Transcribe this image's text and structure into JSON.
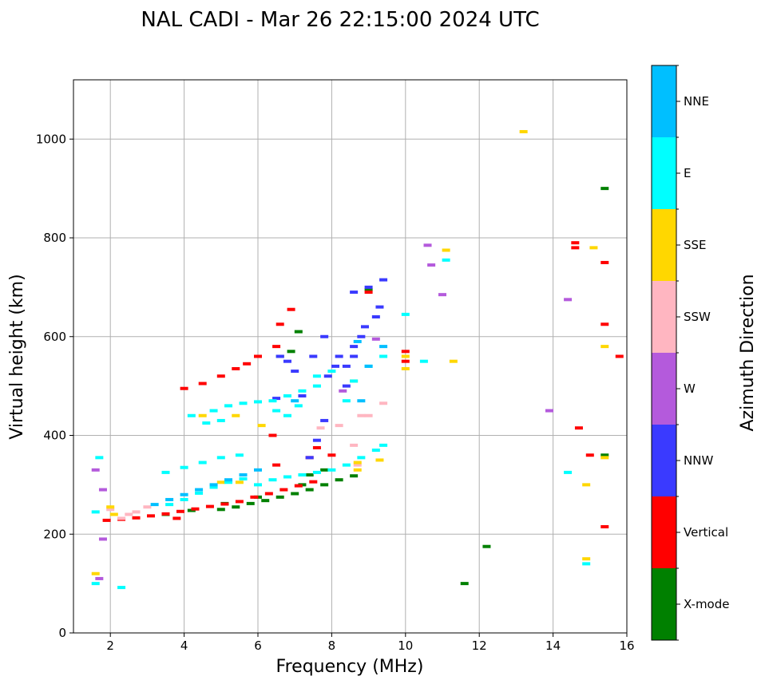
{
  "chart_data": {
    "type": "scatter",
    "title": "NAL CADI - Mar 26 22:15:00 2024 UTC",
    "xlabel": "Frequency (MHz)",
    "ylabel": "Virtual height (km)",
    "xlim": [
      1,
      16
    ],
    "ylim": [
      0,
      1120
    ],
    "xticks": [
      2,
      4,
      6,
      8,
      10,
      12,
      14,
      16
    ],
    "yticks": [
      0,
      200,
      400,
      600,
      800,
      1000
    ],
    "grid": true,
    "colorbar_label": "Azimuth Direction",
    "categories": [
      {
        "name": "X-mode",
        "color": "#008000"
      },
      {
        "name": "Vertical",
        "color": "#ff0000"
      },
      {
        "name": "NNW",
        "color": "#3a3aff"
      },
      {
        "name": "W",
        "color": "#b45adc"
      },
      {
        "name": "SSW",
        "color": "#ffb6c1"
      },
      {
        "name": "SSE",
        "color": "#ffd700"
      },
      {
        "name": "E",
        "color": "#00ffff"
      },
      {
        "name": "NNE",
        "color": "#00bfff"
      }
    ],
    "series": [
      {
        "name": "X-mode",
        "points": [
          [
            5.0,
            250
          ],
          [
            5.4,
            255
          ],
          [
            5.8,
            262
          ],
          [
            6.2,
            268
          ],
          [
            6.6,
            275
          ],
          [
            7.0,
            282
          ],
          [
            7.4,
            290
          ],
          [
            7.8,
            300
          ],
          [
            7.8,
            330
          ],
          [
            8.2,
            310
          ],
          [
            8.6,
            318
          ],
          [
            7.2,
            300
          ],
          [
            7.4,
            320
          ],
          [
            6.6,
            560
          ],
          [
            6.9,
            570
          ],
          [
            7.1,
            610
          ],
          [
            9.0,
            695
          ],
          [
            11.6,
            100
          ],
          [
            12.2,
            175
          ],
          [
            15.4,
            900
          ],
          [
            15.4,
            360
          ],
          [
            3.5,
            240
          ],
          [
            4.2,
            248
          ],
          [
            5.1,
            262
          ],
          [
            6.0,
            275
          ]
        ]
      },
      {
        "name": "Vertical",
        "points": [
          [
            1.9,
            228
          ],
          [
            2.3,
            230
          ],
          [
            2.7,
            233
          ],
          [
            3.1,
            237
          ],
          [
            3.5,
            241
          ],
          [
            3.9,
            246
          ],
          [
            4.3,
            251
          ],
          [
            4.7,
            256
          ],
          [
            5.1,
            261
          ],
          [
            5.5,
            266
          ],
          [
            5.9,
            275
          ],
          [
            6.3,
            282
          ],
          [
            6.7,
            290
          ],
          [
            7.1,
            298
          ],
          [
            7.5,
            306
          ],
          [
            4.0,
            495
          ],
          [
            4.5,
            505
          ],
          [
            5.0,
            520
          ],
          [
            5.4,
            535
          ],
          [
            5.7,
            545
          ],
          [
            6.0,
            560
          ],
          [
            6.5,
            580
          ],
          [
            6.6,
            625
          ],
          [
            6.9,
            655
          ],
          [
            6.4,
            400
          ],
          [
            6.5,
            340
          ],
          [
            7.4,
            355
          ],
          [
            7.6,
            375
          ],
          [
            8.0,
            360
          ],
          [
            9.0,
            690
          ],
          [
            10.0,
            570
          ],
          [
            10.0,
            550
          ],
          [
            14.6,
            790
          ],
          [
            14.6,
            780
          ],
          [
            15.4,
            750
          ],
          [
            15.4,
            625
          ],
          [
            14.7,
            415
          ],
          [
            15.0,
            360
          ],
          [
            15.4,
            215
          ],
          [
            15.8,
            560
          ],
          [
            3.8,
            232
          ]
        ]
      },
      {
        "name": "NNW",
        "points": [
          [
            7.4,
            355
          ],
          [
            7.6,
            390
          ],
          [
            7.8,
            430
          ],
          [
            7.9,
            520
          ],
          [
            8.1,
            540
          ],
          [
            8.2,
            560
          ],
          [
            7.5,
            560
          ],
          [
            7.8,
            600
          ],
          [
            8.4,
            500
          ],
          [
            8.4,
            540
          ],
          [
            8.6,
            560
          ],
          [
            8.8,
            600
          ],
          [
            8.9,
            620
          ],
          [
            9.2,
            640
          ],
          [
            9.3,
            660
          ],
          [
            8.6,
            690
          ],
          [
            9.0,
            700
          ],
          [
            9.4,
            715
          ],
          [
            7.0,
            530
          ],
          [
            6.8,
            550
          ],
          [
            6.6,
            560
          ],
          [
            7.2,
            480
          ],
          [
            6.5,
            475
          ],
          [
            8.6,
            580
          ]
        ]
      },
      {
        "name": "W",
        "points": [
          [
            1.6,
            330
          ],
          [
            1.8,
            290
          ],
          [
            1.8,
            190
          ],
          [
            10.6,
            785
          ],
          [
            10.7,
            745
          ],
          [
            11.0,
            685
          ],
          [
            14.4,
            675
          ],
          [
            13.9,
            450
          ],
          [
            9.2,
            595
          ],
          [
            8.3,
            490
          ],
          [
            1.7,
            110
          ]
        ]
      },
      {
        "name": "SSW",
        "points": [
          [
            2.3,
            232
          ],
          [
            2.5,
            240
          ],
          [
            2.7,
            245
          ],
          [
            3.0,
            255
          ],
          [
            7.7,
            415
          ],
          [
            8.2,
            420
          ],
          [
            8.8,
            440
          ],
          [
            9.0,
            440
          ],
          [
            9.4,
            465
          ],
          [
            8.6,
            380
          ],
          [
            8.7,
            340
          ],
          [
            2.0,
            250
          ]
        ]
      },
      {
        "name": "SSE",
        "points": [
          [
            2.0,
            255
          ],
          [
            2.1,
            240
          ],
          [
            4.5,
            440
          ],
          [
            5.4,
            440
          ],
          [
            6.1,
            420
          ],
          [
            8.7,
            345
          ],
          [
            8.7,
            330
          ],
          [
            9.3,
            350
          ],
          [
            10.0,
            535
          ],
          [
            10.0,
            560
          ],
          [
            11.3,
            550
          ],
          [
            11.1,
            775
          ],
          [
            13.2,
            1015
          ],
          [
            14.9,
            300
          ],
          [
            14.9,
            150
          ],
          [
            15.1,
            780
          ],
          [
            15.4,
            580
          ],
          [
            15.4,
            355
          ],
          [
            8.6,
            510
          ],
          [
            5.0,
            305
          ],
          [
            5.5,
            305
          ],
          [
            1.6,
            120
          ]
        ]
      },
      {
        "name": "E",
        "points": [
          [
            3.5,
            325
          ],
          [
            4.0,
            335
          ],
          [
            4.5,
            345
          ],
          [
            5.0,
            355
          ],
          [
            5.5,
            360
          ],
          [
            3.6,
            260
          ],
          [
            4.0,
            270
          ],
          [
            4.4,
            283
          ],
          [
            4.8,
            295
          ],
          [
            5.2,
            305
          ],
          [
            5.6,
            312
          ],
          [
            6.0,
            300
          ],
          [
            6.4,
            310
          ],
          [
            6.8,
            316
          ],
          [
            7.2,
            320
          ],
          [
            7.6,
            325
          ],
          [
            8.0,
            330
          ],
          [
            8.4,
            340
          ],
          [
            8.8,
            355
          ],
          [
            9.2,
            370
          ],
          [
            9.4,
            380
          ],
          [
            4.2,
            440
          ],
          [
            4.8,
            450
          ],
          [
            5.2,
            460
          ],
          [
            5.6,
            465
          ],
          [
            6.0,
            468
          ],
          [
            6.4,
            470
          ],
          [
            6.8,
            480
          ],
          [
            7.2,
            490
          ],
          [
            7.6,
            500
          ],
          [
            6.5,
            450
          ],
          [
            6.8,
            440
          ],
          [
            7.1,
            460
          ],
          [
            7.6,
            520
          ],
          [
            8.0,
            530
          ],
          [
            8.4,
            470
          ],
          [
            8.6,
            510
          ],
          [
            9.0,
            540
          ],
          [
            9.4,
            560
          ],
          [
            10.0,
            645
          ],
          [
            10.5,
            550
          ],
          [
            11.1,
            755
          ],
          [
            1.6,
            100
          ],
          [
            2.3,
            92
          ],
          [
            1.6,
            245
          ],
          [
            1.7,
            355
          ],
          [
            14.4,
            325
          ],
          [
            14.9,
            140
          ],
          [
            5.0,
            430
          ],
          [
            4.6,
            425
          ]
        ]
      },
      {
        "name": "NNE",
        "points": [
          [
            3.2,
            260
          ],
          [
            3.6,
            270
          ],
          [
            4.0,
            280
          ],
          [
            4.4,
            290
          ],
          [
            4.8,
            300
          ],
          [
            5.2,
            310
          ],
          [
            5.6,
            320
          ],
          [
            6.0,
            330
          ],
          [
            8.8,
            470
          ],
          [
            9.0,
            540
          ],
          [
            9.4,
            580
          ],
          [
            8.7,
            590
          ],
          [
            7.0,
            470
          ]
        ]
      }
    ]
  }
}
